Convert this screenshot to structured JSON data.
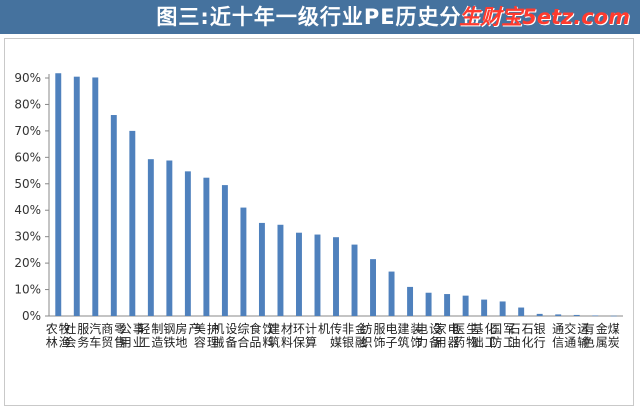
{
  "header": {
    "title": "图三:近十年一级行业PE历史分位",
    "watermark": "生财宝5etz.com"
  },
  "colors": {
    "banner": "#45729e",
    "bar": "#4f81bd",
    "watermark": "#ff3b2f"
  },
  "chart_data": {
    "type": "bar",
    "title": "",
    "xlabel": "",
    "ylabel": "",
    "ylim": [
      0,
      0.9
    ],
    "yticks": [
      "0%",
      "10%",
      "20%",
      "30%",
      "40%",
      "50%",
      "60%",
      "70%",
      "80%",
      "90%"
    ],
    "grid": false,
    "legend": "none",
    "categories": [
      "农林牧渔",
      "社会服务",
      "汽车",
      "商贸零售",
      "公用事业",
      "轻工制造",
      "钢铁",
      "房地产",
      "美容护理",
      "机械设备",
      "综合",
      "食品饮料",
      "建筑材料",
      "环保",
      "计算机",
      "传媒",
      "非银金融",
      "纺织服饰",
      "电子",
      "建筑装饰",
      "电力设备",
      "家用电器",
      "医药生物",
      "基础化工",
      "国防军工",
      "石油石化",
      "银行",
      "通信",
      "交通运输",
      "有色金属",
      "煤炭"
    ],
    "values": [
      0.918,
      0.905,
      0.902,
      0.76,
      0.7,
      0.593,
      0.588,
      0.547,
      0.523,
      0.495,
      0.41,
      0.352,
      0.345,
      0.315,
      0.308,
      0.298,
      0.27,
      0.215,
      0.168,
      0.11,
      0.088,
      0.083,
      0.077,
      0.062,
      0.055,
      0.032,
      0.008,
      0.006,
      0.004,
      0.002,
      0.001
    ]
  }
}
